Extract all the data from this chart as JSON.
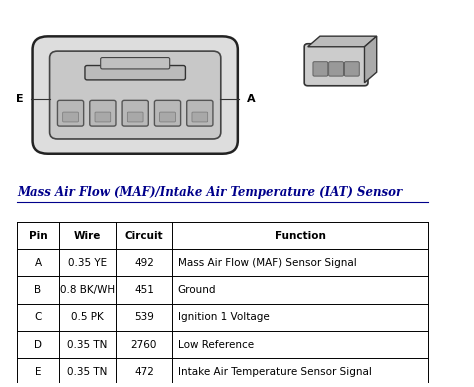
{
  "title": "Mass Air Flow (MAF)/Intake Air Temperature (IAT) Sensor",
  "background_color": "#ffffff",
  "table_headers": [
    "Pin",
    "Wire",
    "Circuit",
    "Function"
  ],
  "table_rows": [
    [
      "A",
      "0.35 YE",
      "492",
      "Mass Air Flow (MAF) Sensor Signal"
    ],
    [
      "B",
      "0.8 BK/WH",
      "451",
      "Ground"
    ],
    [
      "C",
      "0.5 PK",
      "539",
      "Ignition 1 Voltage"
    ],
    [
      "D",
      "0.35 TN",
      "2760",
      "Low Reference"
    ],
    [
      "E",
      "0.35 TN",
      "472",
      "Intake Air Temperature Sensor Signal"
    ]
  ],
  "label_E": "E",
  "label_A": "A",
  "header_color": "#000000",
  "text_color": "#000000",
  "title_color": "#00008B",
  "border_color": "#000000",
  "font_size_title": 8.5,
  "font_size_table": 7.5
}
